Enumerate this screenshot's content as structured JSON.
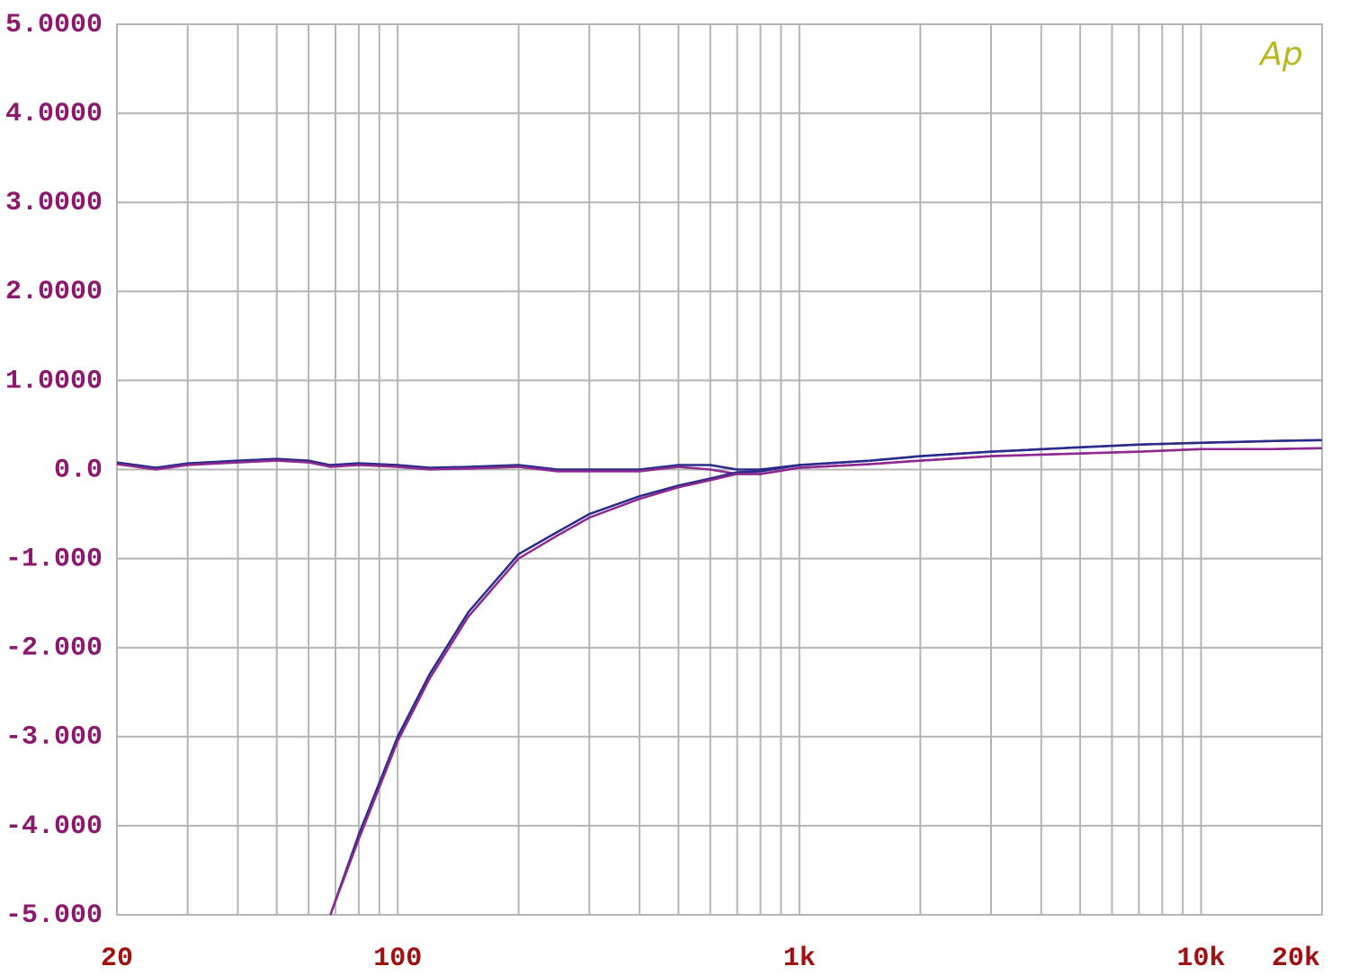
{
  "chart_data": {
    "type": "line",
    "logo": "Ap",
    "x": [
      20,
      25,
      30,
      40,
      50,
      60,
      68,
      80,
      100,
      120,
      150,
      200,
      250,
      300,
      400,
      500,
      600,
      700,
      800,
      1000,
      1500,
      2000,
      3000,
      5000,
      7000,
      10000,
      15000,
      20000
    ],
    "series": [
      {
        "color": "#2b2b8c",
        "values": [
          0.08,
          0.02,
          0.07,
          0.1,
          0.12,
          0.1,
          0.05,
          0.07,
          0.05,
          0.02,
          0.03,
          0.05,
          0.0,
          0.0,
          0.0,
          0.05,
          0.05,
          0.0,
          0.0,
          0.05,
          0.1,
          0.15,
          0.2,
          0.25,
          0.28,
          0.3,
          0.32,
          0.33
        ]
      },
      {
        "color": "#8e2a8e",
        "values": [
          0.06,
          0.0,
          0.05,
          0.08,
          0.1,
          0.08,
          0.03,
          0.05,
          0.03,
          0.0,
          0.01,
          0.03,
          -0.02,
          -0.02,
          -0.02,
          0.03,
          0.0,
          -0.05,
          -0.05,
          0.02,
          0.06,
          0.1,
          0.15,
          0.18,
          0.2,
          0.23,
          0.23,
          0.24
        ]
      },
      {
        "color": "#2b2b8c",
        "values": [
          null,
          null,
          null,
          null,
          null,
          null,
          -5.0,
          -4.1,
          -3.0,
          -2.3,
          -1.6,
          -0.95,
          -0.7,
          -0.5,
          -0.3,
          -0.18,
          -0.1,
          -0.03,
          -0.02,
          0.05,
          0.1,
          0.15,
          0.2,
          0.25,
          0.28,
          0.3,
          0.32,
          0.33
        ]
      },
      {
        "color": "#8e2a8e",
        "values": [
          null,
          null,
          null,
          null,
          null,
          null,
          -5.0,
          -4.15,
          -3.05,
          -2.35,
          -1.65,
          -1.0,
          -0.74,
          -0.54,
          -0.33,
          -0.2,
          -0.12,
          -0.05,
          -0.05,
          0.02,
          0.06,
          0.1,
          0.15,
          0.18,
          0.2,
          0.23,
          0.23,
          0.24
        ]
      }
    ],
    "log_x": true,
    "grid": true,
    "xlim": [
      20,
      20000
    ],
    "xticks": [
      20,
      100,
      {
        "value": 1000,
        "label": "1k"
      },
      {
        "value": 10000,
        "label": "10k"
      },
      {
        "value": 20000,
        "label": "20k"
      }
    ],
    "xminor_ticks": [
      30,
      40,
      50,
      60,
      70,
      80,
      90,
      200,
      300,
      400,
      500,
      600,
      700,
      800,
      900,
      2000,
      3000,
      4000,
      5000,
      6000,
      7000,
      8000,
      9000
    ],
    "ylim": [
      -5,
      5
    ],
    "yticks": [
      {
        "value": 5,
        "label": "5.0000"
      },
      {
        "value": 4,
        "label": "4.0000"
      },
      {
        "value": 3,
        "label": "3.0000"
      },
      {
        "value": 2,
        "label": "2.0000"
      },
      {
        "value": 1,
        "label": "1.0000"
      },
      {
        "value": 0,
        "label": "0.0"
      },
      {
        "value": -1,
        "label": "-1.000"
      },
      {
        "value": -2,
        "label": "-2.000"
      },
      {
        "value": -3,
        "label": "-3.000"
      },
      {
        "value": -4,
        "label": "-4.000"
      },
      {
        "value": -5,
        "label": "-5.000"
      }
    ]
  }
}
